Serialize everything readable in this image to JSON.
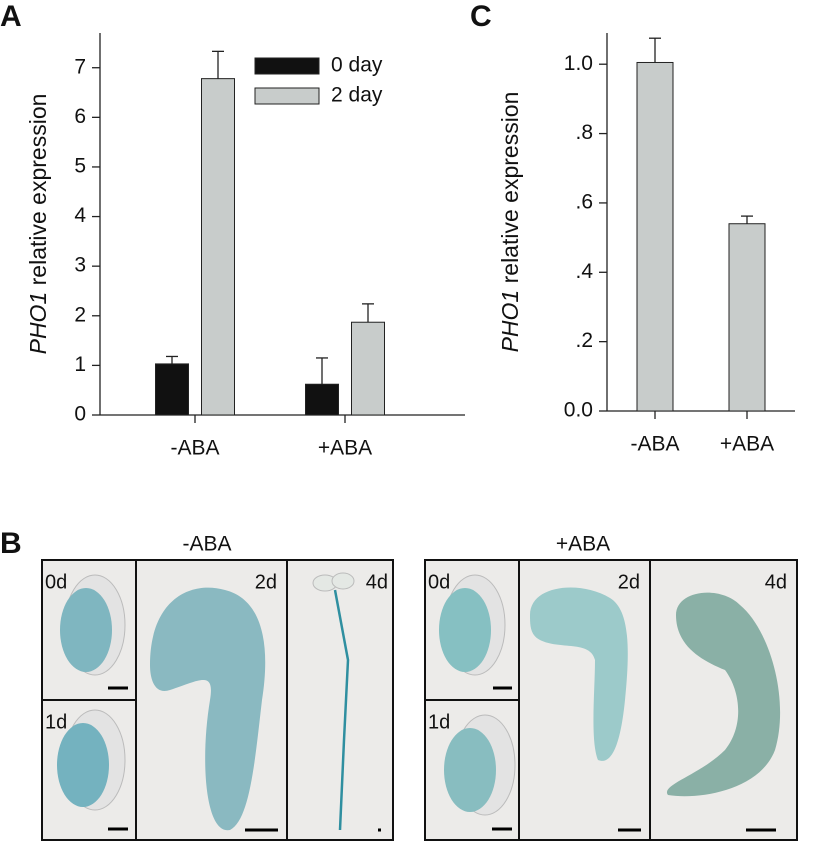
{
  "chart_data": [
    {
      "type": "bar",
      "panel_label": "A",
      "y_label_italic": "PHO1",
      "y_label": "relative expression",
      "categories": [
        "-ABA",
        "+ABA"
      ],
      "series": [
        {
          "name": "0 day",
          "color": "#111111",
          "values": [
            1.03,
            0.62
          ],
          "errors": [
            0.15,
            0.53
          ]
        },
        {
          "name": "2 day",
          "color": "#c8cccb",
          "values": [
            6.78,
            1.87
          ],
          "errors": [
            0.55,
            0.37
          ]
        }
      ],
      "ylim": [
        0,
        7.7
      ],
      "yticks": [
        0,
        1,
        2,
        3,
        4,
        5,
        6,
        7
      ],
      "legend": "upper center"
    },
    {
      "type": "bar",
      "panel_label": "C",
      "y_label_italic": "PHO1",
      "y_label": "relative expression",
      "categories": [
        "-ABA",
        "+ABA"
      ],
      "color": "#c8cccb",
      "values": [
        1.005,
        0.54
      ],
      "errors": [
        0.07,
        0.022
      ],
      "ylim": [
        0,
        1.09
      ],
      "yticks": [
        {
          "value": 0,
          "label": "0.0"
        },
        {
          "value": 0.2,
          "label": ".2"
        },
        {
          "value": 0.4,
          "label": ".4"
        },
        {
          "value": 0.6,
          "label": ".6"
        },
        {
          "value": 0.8,
          "label": ".8"
        },
        {
          "value": 1,
          "label": "1.0"
        }
      ]
    }
  ],
  "panel_b": {
    "label": "B",
    "groups": [
      {
        "title": "-ABA",
        "panels": [
          "0d",
          "1d",
          "2d",
          "4d"
        ]
      },
      {
        "title": "+ABA",
        "panels": [
          "0d",
          "1d",
          "2d",
          "4d"
        ]
      }
    ]
  }
}
